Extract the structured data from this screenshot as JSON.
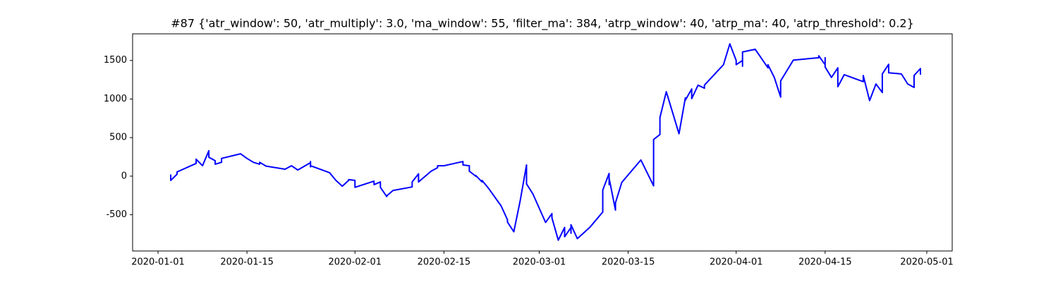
{
  "chart_data": {
    "type": "line",
    "title": "#87 {'atr_window': 50, 'atr_multiply': 3.0, 'ma_window': 55, 'filter_ma': 384, 'atrp_window': 40, 'atrp_ma': 40, 'atrp_threshold': 0.2}",
    "color": "#0000ff",
    "x": [
      "2020-01-03",
      "2020-01-03",
      "2020-01-03",
      "2020-01-04",
      "2020-01-04",
      "2020-01-07",
      "2020-01-07",
      "2020-01-08",
      "2020-01-09",
      "2020-01-09",
      "2020-01-10",
      "2020-01-10",
      "2020-01-11",
      "2020-01-11",
      "2020-01-14",
      "2020-01-15",
      "2020-01-16",
      "2020-01-17",
      "2020-01-17",
      "2020-01-18",
      "2020-01-21",
      "2020-01-22",
      "2020-01-23",
      "2020-01-25",
      "2020-01-25",
      "2020-01-25",
      "2020-01-25",
      "2020-01-28",
      "2020-01-29",
      "2020-01-30",
      "2020-01-31",
      "2020-01-31",
      "2020-02-01",
      "2020-02-01",
      "2020-02-04",
      "2020-02-04",
      "2020-02-05",
      "2020-02-05",
      "2020-02-06",
      "2020-02-06",
      "2020-02-07",
      "2020-02-10",
      "2020-02-10",
      "2020-02-11",
      "2020-02-11",
      "2020-02-13",
      "2020-02-14",
      "2020-02-14",
      "2020-02-15",
      "2020-02-18",
      "2020-02-18",
      "2020-02-19",
      "2020-02-19",
      "2020-02-20",
      "2020-02-20",
      "2020-02-21",
      "2020-02-21",
      "2020-02-22",
      "2020-02-24",
      "2020-02-25",
      "2020-02-25",
      "2020-02-26",
      "2020-02-27",
      "2020-02-28",
      "2020-02-28",
      "2020-02-29",
      "2020-03-02",
      "2020-03-03",
      "2020-03-03",
      "2020-03-04",
      "2020-03-05",
      "2020-03-05",
      "2020-03-06",
      "2020-03-06",
      "2020-03-06",
      "2020-03-07",
      "2020-03-09",
      "2020-03-11",
      "2020-03-11",
      "2020-03-11",
      "2020-03-12",
      "2020-03-12",
      "2020-03-12",
      "2020-03-13",
      "2020-03-13",
      "2020-03-14",
      "2020-03-17",
      "2020-03-19",
      "2020-03-19",
      "2020-03-20",
      "2020-03-20",
      "2020-03-21",
      "2020-03-23",
      "2020-03-24",
      "2020-03-24",
      "2020-03-25",
      "2020-03-25",
      "2020-03-26",
      "2020-03-27",
      "2020-03-27",
      "2020-03-30",
      "2020-03-31",
      "2020-04-01",
      "2020-04-01",
      "2020-04-02",
      "2020-04-02",
      "2020-04-02",
      "2020-04-04",
      "2020-04-06",
      "2020-04-06",
      "2020-04-07",
      "2020-04-08",
      "2020-04-08",
      "2020-04-10",
      "2020-04-14",
      "2020-04-14",
      "2020-04-15",
      "2020-04-15",
      "2020-04-15",
      "2020-04-16",
      "2020-04-17",
      "2020-04-17",
      "2020-04-18",
      "2020-04-21",
      "2020-04-21",
      "2020-04-22",
      "2020-04-23",
      "2020-04-24",
      "2020-04-24",
      "2020-04-25",
      "2020-04-25",
      "2020-04-27",
      "2020-04-28",
      "2020-04-29",
      "2020-04-29",
      "2020-04-30",
      "2020-04-30"
    ],
    "values": [
      0,
      15,
      -55,
      25,
      55,
      165,
      220,
      135,
      330,
      245,
      200,
      155,
      180,
      230,
      290,
      230,
      180,
      155,
      180,
      130,
      90,
      135,
      80,
      175,
      190,
      120,
      135,
      45,
      -55,
      -130,
      -55,
      -45,
      -55,
      -145,
      -65,
      -110,
      -75,
      -145,
      -265,
      -255,
      -185,
      -140,
      -75,
      30,
      -75,
      65,
      110,
      135,
      135,
      190,
      145,
      135,
      65,
      0,
      10,
      -75,
      -55,
      -155,
      -385,
      -565,
      -595,
      -720,
      -320,
      145,
      -100,
      -230,
      -600,
      -485,
      -540,
      -830,
      -665,
      -785,
      -665,
      -740,
      -630,
      -810,
      -660,
      -465,
      -210,
      -180,
      35,
      -110,
      -25,
      -440,
      -345,
      -80,
      210,
      -125,
      475,
      540,
      760,
      1095,
      550,
      1015,
      985,
      1130,
      1005,
      1180,
      1140,
      1180,
      1445,
      1715,
      1500,
      1445,
      1500,
      1425,
      1610,
      1645,
      1405,
      1445,
      1280,
      1025,
      1235,
      1505,
      1535,
      1560,
      1445,
      1535,
      1415,
      1280,
      1405,
      1160,
      1315,
      1225,
      1305,
      980,
      1195,
      1085,
      1325,
      1450,
      1340,
      1325,
      1195,
      1150,
      1305,
      1395,
      1315
    ],
    "xlim": [
      "2019-12-28",
      "2020-05-05"
    ],
    "xticks": [
      "2020-01-01",
      "2020-01-15",
      "2020-02-01",
      "2020-02-15",
      "2020-03-01",
      "2020-03-15",
      "2020-04-01",
      "2020-04-15",
      "2020-05-01"
    ],
    "ylim": [
      -970,
      1845
    ],
    "yticks": [
      -500,
      0,
      500,
      1000,
      1500
    ]
  }
}
